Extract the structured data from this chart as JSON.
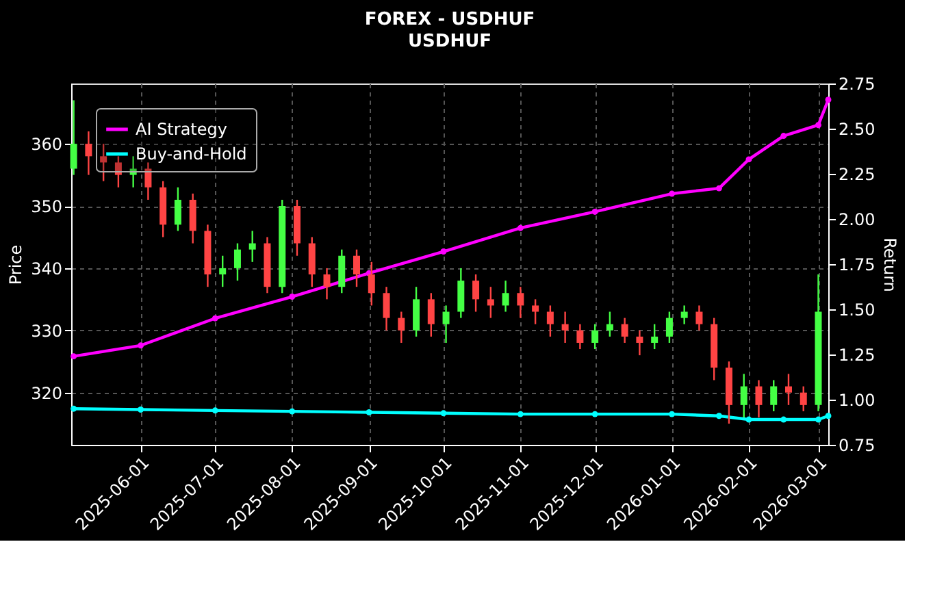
{
  "chart_data": {
    "type": "candlestick",
    "title": "FOREX - USDHUF",
    "subtitle": "USDHUF",
    "ylabel": "Price",
    "y2label": "Return",
    "x": [
      "2025-05-05",
      "2025-05-11",
      "2025-05-17",
      "2025-05-23",
      "2025-05-29",
      "2025-06-04",
      "2025-06-10",
      "2025-06-16",
      "2025-06-22",
      "2025-06-28",
      "2025-07-04",
      "2025-07-10",
      "2025-07-16",
      "2025-07-22",
      "2025-07-28",
      "2025-08-03",
      "2025-08-09",
      "2025-08-15",
      "2025-08-21",
      "2025-08-27",
      "2025-09-02",
      "2025-09-08",
      "2025-09-14",
      "2025-09-20",
      "2025-09-26",
      "2025-10-02",
      "2025-10-08",
      "2025-10-14",
      "2025-10-20",
      "2025-10-26",
      "2025-11-01",
      "2025-11-07",
      "2025-11-13",
      "2025-11-19",
      "2025-11-25",
      "2025-12-01",
      "2025-12-07",
      "2025-12-13",
      "2025-12-19",
      "2025-12-25",
      "2025-12-31",
      "2026-01-06",
      "2026-01-12",
      "2026-01-18",
      "2026-01-24",
      "2026-01-30",
      "2026-02-05",
      "2026-02-11",
      "2026-02-17",
      "2026-02-23",
      "2026-03-01"
    ],
    "ohlc": [
      [
        356,
        367,
        355,
        360
      ],
      [
        360,
        362,
        355,
        358
      ],
      [
        358,
        360,
        354,
        357
      ],
      [
        357,
        358,
        353,
        355
      ],
      [
        355,
        358,
        353,
        356
      ],
      [
        356,
        357,
        351,
        353
      ],
      [
        353,
        354,
        345,
        347
      ],
      [
        347,
        353,
        346,
        351
      ],
      [
        351,
        352,
        344,
        346
      ],
      [
        346,
        347,
        337,
        339
      ],
      [
        339,
        342,
        337,
        340
      ],
      [
        340,
        344,
        338,
        343
      ],
      [
        343,
        346,
        341,
        344
      ],
      [
        344,
        345,
        336,
        337
      ],
      [
        337,
        351,
        336,
        350
      ],
      [
        350,
        351,
        342,
        344
      ],
      [
        344,
        345,
        337,
        339
      ],
      [
        339,
        340,
        335,
        337
      ],
      [
        337,
        343,
        336,
        342
      ],
      [
        342,
        343,
        337,
        339
      ],
      [
        339,
        341,
        334,
        336
      ],
      [
        336,
        337,
        330,
        332
      ],
      [
        332,
        333,
        328,
        330
      ],
      [
        330,
        337,
        329,
        335
      ],
      [
        335,
        336,
        329,
        331
      ],
      [
        331,
        334,
        328,
        333
      ],
      [
        333,
        340,
        332,
        338
      ],
      [
        338,
        339,
        333,
        335
      ],
      [
        335,
        337,
        332,
        334
      ],
      [
        334,
        338,
        333,
        336
      ],
      [
        336,
        337,
        332,
        334
      ],
      [
        334,
        335,
        331,
        333
      ],
      [
        333,
        334,
        329,
        331
      ],
      [
        331,
        333,
        328,
        330
      ],
      [
        330,
        331,
        327,
        328
      ],
      [
        328,
        331,
        327,
        330
      ],
      [
        330,
        333,
        329,
        331
      ],
      [
        331,
        332,
        328,
        329
      ],
      [
        329,
        330,
        326,
        328
      ],
      [
        328,
        331,
        327,
        329
      ],
      [
        329,
        333,
        328,
        332
      ],
      [
        332,
        334,
        331,
        333
      ],
      [
        333,
        334,
        330,
        331
      ],
      [
        331,
        332,
        322,
        324
      ],
      [
        324,
        325,
        315,
        318
      ],
      [
        318,
        323,
        316,
        321
      ],
      [
        321,
        322,
        316,
        318
      ],
      [
        318,
        322,
        317,
        321
      ],
      [
        321,
        323,
        318,
        320
      ],
      [
        320,
        321,
        317,
        318
      ],
      [
        318,
        339,
        317,
        333
      ]
    ],
    "colors": [
      "#44ff44",
      "#ff4444",
      "#ff4444",
      "#ff4444",
      "#44ff44",
      "#ff4444",
      "#ff4444",
      "#44ff44",
      "#ff4444",
      "#ff4444",
      "#44ff44",
      "#44ff44",
      "#44ff44",
      "#ff4444",
      "#44ff44",
      "#ff4444",
      "#ff4444",
      "#ff4444",
      "#44ff44",
      "#ff4444",
      "#ff4444",
      "#ff4444",
      "#ff4444",
      "#44ff44",
      "#ff4444",
      "#44ff44",
      "#44ff44",
      "#ff4444",
      "#ff4444",
      "#44ff44",
      "#ff4444",
      "#ff4444",
      "#ff4444",
      "#ff4444",
      "#ff4444",
      "#44ff44",
      "#44ff44",
      "#ff4444",
      "#ff4444",
      "#44ff44",
      "#44ff44",
      "#44ff44",
      "#ff4444",
      "#ff4444",
      "#ff4444",
      "#44ff44",
      "#ff4444",
      "#44ff44",
      "#ff4444",
      "#ff4444",
      "#44ff44"
    ],
    "series": [
      {
        "name": "AI Strategy",
        "color": "#ff00ff",
        "type": "line",
        "axis": "y2",
        "x": [
          "2025-05-05",
          "2025-06-01",
          "2025-07-01",
          "2025-08-01",
          "2025-09-01",
          "2025-10-01",
          "2025-11-01",
          "2025-12-01",
          "2026-01-01",
          "2026-01-20",
          "2026-02-01",
          "2026-02-15",
          "2026-03-01",
          "2026-03-05"
        ],
        "values": [
          1.24,
          1.3,
          1.45,
          1.57,
          1.7,
          1.82,
          1.95,
          2.04,
          2.14,
          2.17,
          2.33,
          2.46,
          2.52,
          2.66
        ]
      },
      {
        "name": "Buy-and-Hold",
        "color": "#00ffff",
        "type": "line",
        "axis": "y2",
        "x": [
          "2025-05-05",
          "2025-06-01",
          "2025-07-01",
          "2025-08-01",
          "2025-09-01",
          "2025-10-01",
          "2025-11-01",
          "2025-12-01",
          "2026-01-01",
          "2026-01-20",
          "2026-02-01",
          "2026-02-15",
          "2026-03-01",
          "2026-03-05"
        ],
        "values": [
          0.95,
          0.945,
          0.94,
          0.935,
          0.93,
          0.925,
          0.92,
          0.92,
          0.92,
          0.91,
          0.89,
          0.89,
          0.89,
          0.91
        ]
      }
    ],
    "xlim": [
      "2025-05-04",
      "2026-03-05"
    ],
    "xticks": [
      "2025-06-01",
      "2025-07-01",
      "2025-08-01",
      "2025-09-01",
      "2025-10-01",
      "2025-11-01",
      "2025-12-01",
      "2026-01-01",
      "2026-02-01",
      "2026-03-01"
    ],
    "ylim": [
      311.6,
      369.7
    ],
    "yticks": [
      320,
      330,
      340,
      350,
      360
    ],
    "y2lim": [
      0.75,
      2.75
    ],
    "y2ticks": [
      0.75,
      {
        "value": 1,
        "label": "1.00"
      },
      1.25,
      {
        "value": 1.5,
        "label": "1.50"
      },
      1.75,
      {
        "value": 2,
        "label": "2.00"
      },
      2.25,
      {
        "value": 2.5,
        "label": "2.50"
      },
      2.75
    ],
    "grid": true,
    "legend": "top left",
    "marker": "circle",
    "line_style": "solid"
  }
}
